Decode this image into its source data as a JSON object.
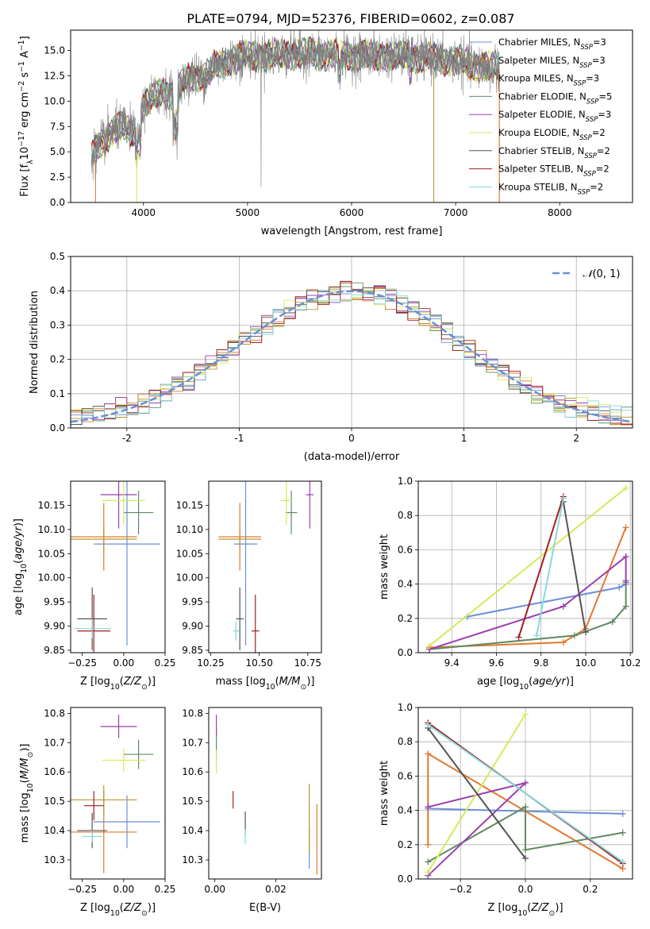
{
  "figure_title": "PLATE=0794, MJD=52376, FIBERID=0602, z=0.087",
  "models": [
    {
      "name": "Chabrier MILES, N$_{SSP}$=3",
      "base": "Chabrier MILES, N",
      "sub": "SSP",
      "tail": "=3",
      "color": "#6b8fd6"
    },
    {
      "name": "Salpeter MILES, N$_{SSP}$=3",
      "base": "Salpeter MILES, N",
      "sub": "SSP",
      "tail": "=3",
      "color": "#e07a30"
    },
    {
      "name": "Kroupa MILES, N$_{SSP}$=3",
      "base": "Kroupa MILES, N",
      "sub": "SSP",
      "tail": "=3",
      "color": "#b8962e"
    },
    {
      "name": "Chabrier ELODIE, N$_{SSP}$=5",
      "base": "Chabrier ELODIE, N",
      "sub": "SSP",
      "tail": "=5",
      "color": "#5f8a63"
    },
    {
      "name": "Salpeter ELODIE, N$_{SSP}$=3",
      "base": "Salpeter ELODIE, N",
      "sub": "SSP",
      "tail": "=3",
      "color": "#9b3fb0"
    },
    {
      "name": "Kroupa ELODIE, N$_{SSP}$=2",
      "base": "Kroupa ELODIE, N",
      "sub": "SSP",
      "tail": "=2",
      "color": "#d4ea5a"
    },
    {
      "name": "Chabrier STELIB, N$_{SSP}$=2",
      "base": "Chabrier STELIB, N",
      "sub": "SSP",
      "tail": "=2",
      "color": "#555555"
    },
    {
      "name": "Salpeter STELIB, N$_{SSP}$=2",
      "base": "Salpeter STELIB, N",
      "sub": "SSP",
      "tail": "=2",
      "color": "#a31d1d"
    },
    {
      "name": "Kroupa STELIB, N$_{SSP}$=2",
      "base": "Kroupa STELIB, N",
      "sub": "SSP",
      "tail": "=2",
      "color": "#86d8de"
    }
  ],
  "chart_data": [
    {
      "type": "line",
      "panel": "spectrum",
      "title": "PLATE=0794, MJD=52376, FIBERID=0602, z=0.087",
      "xlabel": "wavelength [Angstrom, rest frame]",
      "ylabel": "Flux [f_λ10^-17 erg cm^-2 s^-1 A^-1]",
      "xlim": [
        3300,
        8700
      ],
      "ylim": [
        0,
        17
      ],
      "xticks": [
        4000,
        5000,
        6000,
        7000,
        8000
      ],
      "yticks": [
        0.0,
        2.5,
        5.0,
        7.5,
        10.0,
        12.5,
        15.0
      ],
      "ytick_labels": [
        "0.0",
        "2.5",
        "5.0",
        "7.5",
        "10.0",
        "12.5",
        "15.0"
      ],
      "data_color": "#808080",
      "continuum": {
        "x": [
          3500,
          3600,
          3700,
          3800,
          3900,
          4000,
          4100,
          4200,
          4300,
          4400,
          4500,
          4600,
          4700,
          4800,
          5000,
          5200,
          5500,
          6000,
          6500,
          7000,
          7200,
          7400
        ],
        "y": [
          4.5,
          6.0,
          7.0,
          7.5,
          7.0,
          9.5,
          10.5,
          11.0,
          10.5,
          12.0,
          12.5,
          12.5,
          13.5,
          14.0,
          14.5,
          14.5,
          14.7,
          14.5,
          14.5,
          14.0,
          13.5,
          13.3
        ]
      },
      "legend": "upper right"
    },
    {
      "type": "histogram",
      "panel": "residuals",
      "xlabel": "(data-model)/error",
      "ylabel": "Normed distribution",
      "xlim": [
        -2.5,
        2.5
      ],
      "ylim": [
        0,
        0.5
      ],
      "xticks": [
        -2,
        -1,
        0,
        1,
        2
      ],
      "yticks": [
        0.0,
        0.1,
        0.2,
        0.3,
        0.4,
        0.5
      ],
      "ytick_labels": [
        "0.0",
        "0.1",
        "0.2",
        "0.3",
        "0.4",
        "0.5"
      ],
      "bin_width": 0.1,
      "reference": {
        "name": "N(0,1)",
        "mu": 0,
        "sigma": 1,
        "color": "#6b8fd6"
      },
      "grid": true,
      "legend": "upper right"
    },
    {
      "type": "errorbar",
      "panel": "age_vs_Z",
      "xlabel": "Z [log10(Z/Z⊙)]",
      "ylabel": "age [log10(age/yr)]",
      "xlim": [
        -0.32,
        0.25
      ],
      "ylim": [
        9.845,
        10.2
      ],
      "xticks": [
        -0.25,
        0.0,
        0.25
      ],
      "xtick_labels": [
        "−0.25",
        "0.00",
        "0.25"
      ],
      "yticks": [
        9.85,
        9.9,
        9.95,
        10.0,
        10.05,
        10.1,
        10.15
      ],
      "ytick_labels": [
        "9.85",
        "9.90",
        "9.95",
        "10.00",
        "10.05",
        "10.10",
        "10.15"
      ],
      "points": [
        {
          "x": 0.02,
          "y": 10.07,
          "xerr": 0.2,
          "yerr": 0.21
        },
        {
          "x": -0.12,
          "y": 10.085,
          "xerr": 0.2,
          "yerr": 0.07
        },
        {
          "x": -0.12,
          "y": 10.08,
          "xerr": 0.2,
          "yerr": 0.03
        },
        {
          "x": 0.09,
          "y": 10.135,
          "xerr": 0.09,
          "yerr": 0.045
        },
        {
          "x": -0.03,
          "y": 10.172,
          "xerr": 0.11,
          "yerr": 0.07
        },
        {
          "x": 0.0,
          "y": 10.16,
          "xerr": 0.13,
          "yerr": 0.05
        },
        {
          "x": -0.19,
          "y": 9.915,
          "xerr": 0.09,
          "yerr": 0.065
        },
        {
          "x": -0.18,
          "y": 9.89,
          "xerr": 0.1,
          "yerr": 0.075
        },
        {
          "x": -0.19,
          "y": 9.895,
          "xerr": 0.11,
          "yerr": 0.02
        }
      ]
    },
    {
      "type": "errorbar",
      "panel": "age_vs_mass",
      "xlabel": "mass [log10(M/M⊙)]",
      "xlim": [
        10.24,
        10.82
      ],
      "ylim": [
        9.845,
        10.2
      ],
      "xticks": [
        10.25,
        10.5,
        10.75
      ],
      "xtick_labels": [
        "10.25",
        "10.50",
        "10.75"
      ],
      "yticks": [
        9.85,
        9.9,
        9.95,
        10.0,
        10.05,
        10.1,
        10.15
      ],
      "ytick_labels": [
        "9.85",
        "9.90",
        "9.95",
        "10.00",
        "10.05",
        "10.10",
        "10.15"
      ],
      "points": [
        {
          "x": 10.43,
          "y": 10.07,
          "xerr": 0.06,
          "yerr": 0.21
        },
        {
          "x": 10.4,
          "y": 10.085,
          "xerr": 0.11,
          "yerr": 0.07
        },
        {
          "x": 10.4,
          "y": 10.08,
          "xerr": 0.11,
          "yerr": 0.03
        },
        {
          "x": 10.665,
          "y": 10.135,
          "xerr": 0.03,
          "yerr": 0.045
        },
        {
          "x": 10.76,
          "y": 10.172,
          "xerr": 0.02,
          "yerr": 0.07
        },
        {
          "x": 10.64,
          "y": 10.16,
          "xerr": 0.03,
          "yerr": 0.05
        },
        {
          "x": 10.4,
          "y": 9.915,
          "xerr": 0.02,
          "yerr": 0.065
        },
        {
          "x": 10.48,
          "y": 9.89,
          "xerr": 0.02,
          "yerr": 0.075
        },
        {
          "x": 10.38,
          "y": 9.89,
          "xerr": 0.015,
          "yerr": 0.02
        }
      ]
    },
    {
      "type": "line",
      "panel": "weight_vs_age",
      "xlabel": "age [log10(age/yr)]",
      "ylabel": "mass weight",
      "xlim": [
        9.25,
        10.21
      ],
      "ylim": [
        0,
        1.0
      ],
      "xticks": [
        9.4,
        9.6,
        9.8,
        10.0,
        10.2
      ],
      "xtick_labels": [
        "9.4",
        "9.6",
        "9.8",
        "10.0",
        "10.2"
      ],
      "yticks": [
        0.0,
        0.2,
        0.4,
        0.6,
        0.8,
        1.0
      ],
      "ytick_labels": [
        "0.0",
        "0.2",
        "0.4",
        "0.6",
        "0.8",
        "1.0"
      ],
      "grid": true,
      "series": [
        {
          "x": [
            9.47,
            10.15,
            10.18
          ],
          "y": [
            0.21,
            0.38,
            0.4
          ]
        },
        {
          "x": [
            9.3,
            9.9,
            10.0,
            10.18
          ],
          "y": [
            0.03,
            0.06,
            0.14,
            0.73
          ]
        },
        {
          "x": [],
          "y": []
        },
        {
          "x": [
            9.3,
            9.95,
            10.12,
            10.18,
            10.18
          ],
          "y": [
            0.02,
            0.1,
            0.18,
            0.27,
            0.42
          ]
        },
        {
          "x": [
            9.3,
            9.9,
            10.18,
            10.18
          ],
          "y": [
            0.02,
            0.27,
            0.56,
            0.41
          ]
        },
        {
          "x": [
            9.3,
            10.18
          ],
          "y": [
            0.04,
            0.96
          ]
        },
        {
          "x": [
            9.9,
            10.0
          ],
          "y": [
            0.88,
            0.12
          ]
        },
        {
          "x": [
            9.7,
            9.9
          ],
          "y": [
            0.09,
            0.91
          ]
        },
        {
          "x": [
            9.78,
            9.9
          ],
          "y": [
            0.1,
            0.9
          ]
        }
      ]
    },
    {
      "type": "errorbar",
      "panel": "mass_vs_Z",
      "xlabel": "Z [log10(Z/Z⊙)]",
      "ylabel": "mass [log10(M/M⊙)]",
      "xlim": [
        -0.32,
        0.25
      ],
      "ylim": [
        10.235,
        10.82
      ],
      "xticks": [
        -0.25,
        0.0,
        0.25
      ],
      "xtick_labels": [
        "−0.25",
        "0.00",
        "0.25"
      ],
      "yticks": [
        10.3,
        10.4,
        10.5,
        10.6,
        10.7,
        10.8
      ],
      "ytick_labels": [
        "10.3",
        "10.4",
        "10.5",
        "10.6",
        "10.7",
        "10.8"
      ],
      "points": [
        {
          "x": 0.02,
          "y": 10.43,
          "xerr": 0.2,
          "yerr": 0.09
        },
        {
          "x": -0.12,
          "y": 10.395,
          "xerr": 0.2,
          "yerr": 0.14
        },
        {
          "x": -0.12,
          "y": 10.505,
          "xerr": 0.2,
          "yerr": 0.05
        },
        {
          "x": 0.09,
          "y": 10.66,
          "xerr": 0.09,
          "yerr": 0.05
        },
        {
          "x": -0.03,
          "y": 10.755,
          "xerr": 0.11,
          "yerr": 0.04
        },
        {
          "x": 0.0,
          "y": 10.64,
          "xerr": 0.13,
          "yerr": 0.04
        },
        {
          "x": -0.19,
          "y": 10.4,
          "xerr": 0.09,
          "yerr": 0.06
        },
        {
          "x": -0.18,
          "y": 10.485,
          "xerr": 0.06,
          "yerr": 0.05
        },
        {
          "x": -0.19,
          "y": 10.38,
          "xerr": 0.06,
          "yerr": 0.02
        }
      ]
    },
    {
      "type": "errorbar",
      "panel": "mass_vs_EBV",
      "xlabel": "E(B-V)",
      "xlim": [
        -0.002,
        0.035
      ],
      "ylim": [
        10.235,
        10.82
      ],
      "xticks": [
        0.0,
        0.02
      ],
      "xtick_labels": [
        "0.00",
        "0.02"
      ],
      "yticks": [
        10.3,
        10.4,
        10.5,
        10.6,
        10.7,
        10.8
      ],
      "ytick_labels": [
        "10.3",
        "10.4",
        "10.5",
        "10.6",
        "10.7",
        "10.8"
      ],
      "points": [
        {
          "x": 0.031,
          "y": 10.34,
          "yerr": 0.07
        },
        {
          "x": 0.0335,
          "y": 10.37,
          "yerr": 0.12
        },
        {
          "x": 0.031,
          "y": 10.44,
          "yerr": 0.12
        },
        {
          "x": 0.0005,
          "y": 10.695,
          "yerr": 0.055
        },
        {
          "x": 0.0005,
          "y": 10.76,
          "yerr": 0.035
        },
        {
          "x": 0.0005,
          "y": 10.635,
          "yerr": 0.04
        },
        {
          "x": 0.01,
          "y": 10.425,
          "yerr": 0.04
        },
        {
          "x": 0.006,
          "y": 10.505,
          "yerr": 0.03
        },
        {
          "x": 0.01,
          "y": 10.38,
          "yerr": 0.025
        }
      ]
    },
    {
      "type": "line",
      "panel": "weight_vs_Z",
      "xlabel": "Z [log10(Z/Z⊙)]",
      "ylabel": "mass weight",
      "xlim": [
        -0.33,
        0.33
      ],
      "ylim": [
        0,
        1.0
      ],
      "xticks": [
        -0.2,
        0.0,
        0.2
      ],
      "xtick_labels": [
        "−0.2",
        "0.0",
        "0.2"
      ],
      "yticks": [
        0.0,
        0.2,
        0.4,
        0.6,
        0.8,
        1.0
      ],
      "ytick_labels": [
        "0.0",
        "0.2",
        "0.4",
        "0.6",
        "0.8",
        "1.0"
      ],
      "grid": true,
      "series": [
        {
          "x": [
            -0.3,
            0.3
          ],
          "y": [
            0.41,
            0.38
          ]
        },
        {
          "x": [
            -0.3,
            -0.3,
            0.3
          ],
          "y": [
            0.2,
            0.73,
            0.06
          ]
        },
        {
          "x": [],
          "y": []
        },
        {
          "x": [
            -0.3,
            0.0,
            0.0,
            0.3
          ],
          "y": [
            0.1,
            0.42,
            0.17,
            0.27
          ]
        },
        {
          "x": [
            -0.3,
            0.0,
            -0.3
          ],
          "y": [
            0.02,
            0.56,
            0.42
          ]
        },
        {
          "x": [
            -0.3,
            0.0
          ],
          "y": [
            0.04,
            0.96
          ]
        },
        {
          "x": [
            -0.3,
            0.0
          ],
          "y": [
            0.88,
            0.12
          ]
        },
        {
          "x": [
            -0.3,
            0.3
          ],
          "y": [
            0.91,
            0.09
          ]
        },
        {
          "x": [
            -0.3,
            0.3
          ],
          "y": [
            0.9,
            0.1
          ]
        }
      ]
    }
  ]
}
